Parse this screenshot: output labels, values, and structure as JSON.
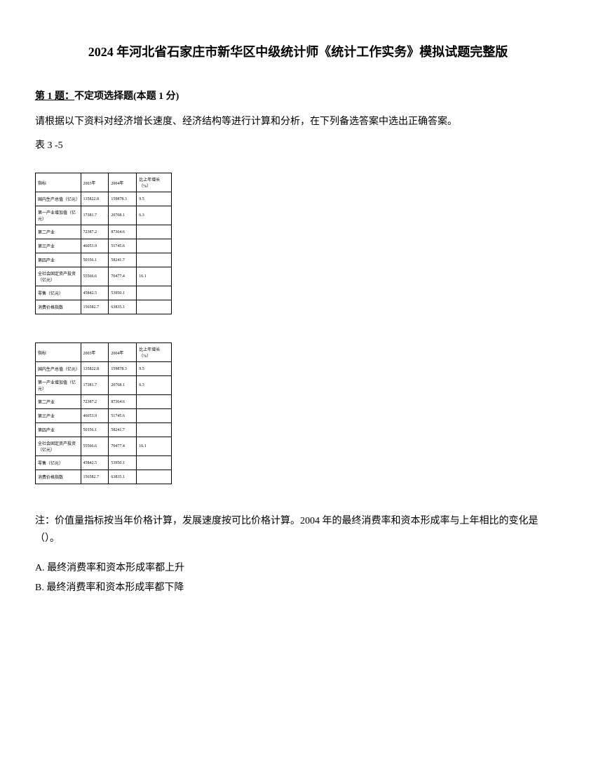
{
  "title": "2024 年河北省石家庄市新华区中级统计师《统计工作实务》模拟试题完整版",
  "question_header": {
    "prefix": "第 1 题：",
    "type": "不定项选择题(本题 1 分)"
  },
  "question_text": "请根据以下资料对经济增长速度、经济结构等进行计算和分析，在下列备选答案中选出正确答案。",
  "table_label": "表 3 -5",
  "table": {
    "rows": [
      [
        "指标",
        "2003年",
        "2004年",
        "比上年增长（%）"
      ],
      [
        "国内生产总值（亿元）",
        "135822.8",
        "159878.3",
        "9.5"
      ],
      [
        "第一产业增加值（亿元）",
        "17381.7",
        "20768.1",
        "6.3"
      ],
      [
        "第二产业",
        "72387.2",
        "87364.6",
        ""
      ],
      [
        "第三产业",
        "46053.9",
        "51745.6",
        ""
      ],
      [
        "第四产业",
        "50356.1",
        "58241.7",
        ""
      ],
      [
        "全社会固定资产投资（亿元）",
        "55566.6",
        "70477.4",
        "16.1"
      ],
      [
        "零售（亿元）",
        "45842.5",
        "53950.1",
        ""
      ],
      [
        "消费价格指数",
        "156582.7",
        "63835.1",
        ""
      ]
    ]
  },
  "note_text": "注：价值量指标按当年价格计算，发展速度按可比价格计算。2004 年的最终消费率和资本形成率与上年相比的变化是（）。",
  "options": {
    "A": "A. 最终消费率和资本形成率都上升",
    "B": "B. 最终消费率和资本形成率都下降"
  },
  "styling": {
    "background_color": "#ffffff",
    "text_color": "#000000",
    "title_fontsize": 18,
    "body_fontsize": 14,
    "table_fontsize": 6,
    "border_color": "#000000"
  }
}
